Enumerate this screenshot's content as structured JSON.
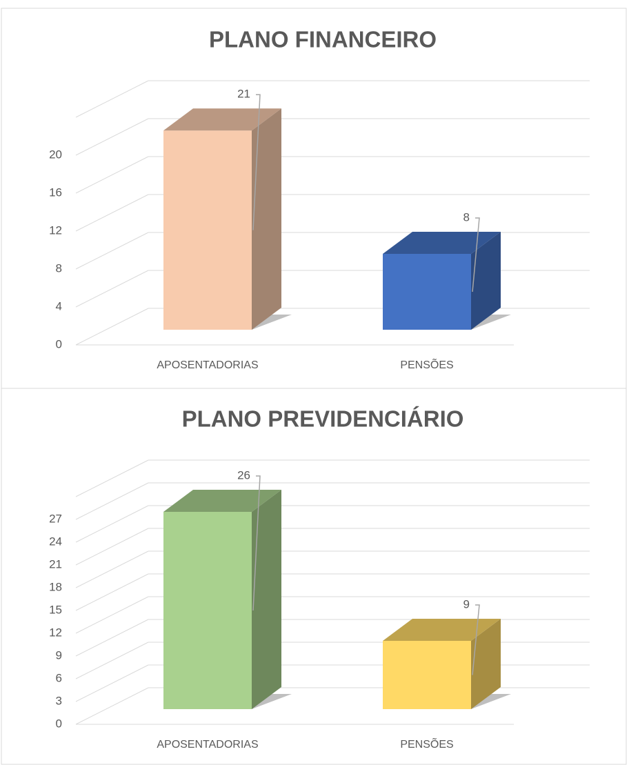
{
  "chart_data": [
    {
      "type": "bar3d",
      "title": "PLANO FINANCEIRO",
      "categories": [
        "APOSENTADORIAS",
        "PENSÕES"
      ],
      "values": [
        21,
        8
      ],
      "colors": [
        "#f8cbad",
        "#4472c4"
      ],
      "ylim": [
        0,
        24
      ],
      "yticks": [
        0,
        4,
        8,
        12,
        16,
        20
      ],
      "grid": true
    },
    {
      "type": "bar3d",
      "title": "PLANO PREVIDENCIÁRIO",
      "categories": [
        "APOSENTADORIAS",
        "PENSÕES"
      ],
      "values": [
        26,
        9
      ],
      "colors": [
        "#a9d18e",
        "#ffd966"
      ],
      "ylim": [
        0,
        30
      ],
      "yticks": [
        0,
        3,
        6,
        9,
        12,
        15,
        18,
        21,
        24,
        27
      ],
      "grid": true
    }
  ]
}
